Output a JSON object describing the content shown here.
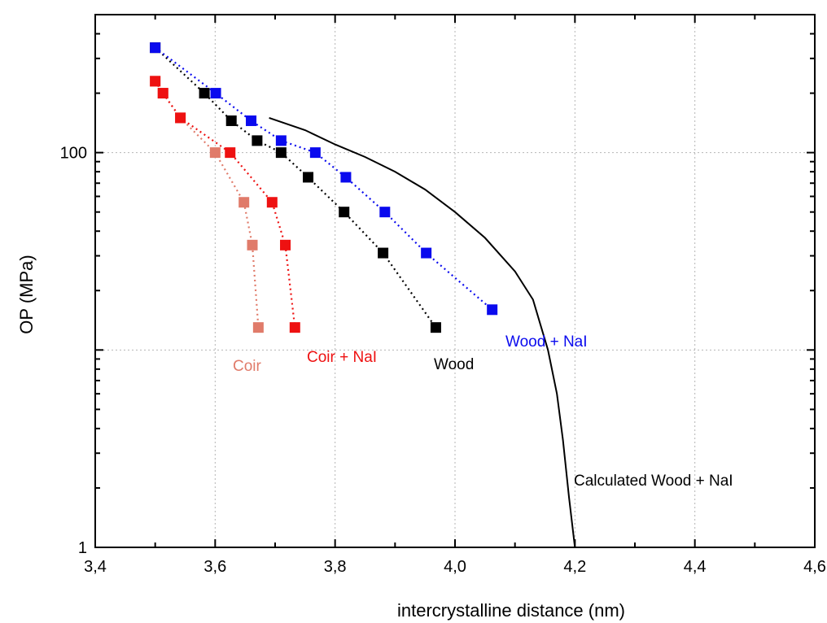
{
  "chart_data": {
    "type": "scatter",
    "title": "",
    "xlabel": "intercrystalline distance (nm)",
    "ylabel": "OP (MPa)",
    "xlim": [
      3.4,
      4.6
    ],
    "ylim": [
      1,
      500
    ],
    "yscale": "log",
    "grid": true,
    "x_ticks": [
      3.4,
      3.6,
      3.8,
      4.0,
      4.2,
      4.4,
      4.6
    ],
    "x_tick_labels": [
      "3,4",
      "3,6",
      "3,8",
      "4,0",
      "4,2",
      "4,4",
      "4,6"
    ],
    "y_tick_labels": [
      {
        "value": 1,
        "label": "1"
      },
      {
        "value": 100,
        "label": "100"
      }
    ],
    "series": [
      {
        "name": "Coir",
        "color": "#e07b6a",
        "marker": "square",
        "line": "dotted",
        "x": [
          3.5,
          3.513,
          3.542,
          3.6,
          3.648,
          3.662,
          3.672
        ],
        "y": [
          230,
          200,
          150,
          100,
          56,
          34,
          13
        ]
      },
      {
        "name": "Coir + NaI",
        "color": "#ee1111",
        "marker": "square",
        "line": "dotted",
        "x": [
          3.5,
          3.513,
          3.542,
          3.625,
          3.695,
          3.717,
          3.733
        ],
        "y": [
          230,
          200,
          150,
          100,
          56,
          34,
          13
        ]
      },
      {
        "name": "Wood",
        "color": "#000000",
        "marker": "square",
        "line": "dotted",
        "x": [
          3.5,
          3.582,
          3.627,
          3.67,
          3.71,
          3.755,
          3.815,
          3.88,
          3.968
        ],
        "y": [
          340,
          200,
          145,
          115,
          100,
          75,
          50,
          31,
          13
        ]
      },
      {
        "name": "Wood + NaI",
        "color": "#0a0aee",
        "marker": "square",
        "line": "dotted",
        "x": [
          3.5,
          3.601,
          3.66,
          3.71,
          3.767,
          3.818,
          3.883,
          3.952,
          4.062
        ],
        "y": [
          340,
          200,
          145,
          115,
          100,
          75,
          50,
          31,
          16
        ]
      },
      {
        "name": "Calculated Wood + NaI",
        "color": "#000000",
        "marker": "none",
        "line": "solid",
        "x": [
          3.69,
          3.75,
          3.8,
          3.85,
          3.9,
          3.95,
          4.0,
          4.05,
          4.1,
          4.13,
          4.155,
          4.17,
          4.18,
          4.19,
          4.2
        ],
        "y": [
          150,
          130,
          110,
          95,
          80,
          65,
          50,
          37,
          25,
          18,
          10,
          6,
          3.5,
          1.8,
          1
        ]
      }
    ],
    "annotations": {
      "coir": "Coir",
      "coir_nai": "Coir + NaI",
      "wood": "Wood",
      "wood_nai": "Wood + NaI",
      "calc": "Calculated Wood + NaI"
    }
  }
}
